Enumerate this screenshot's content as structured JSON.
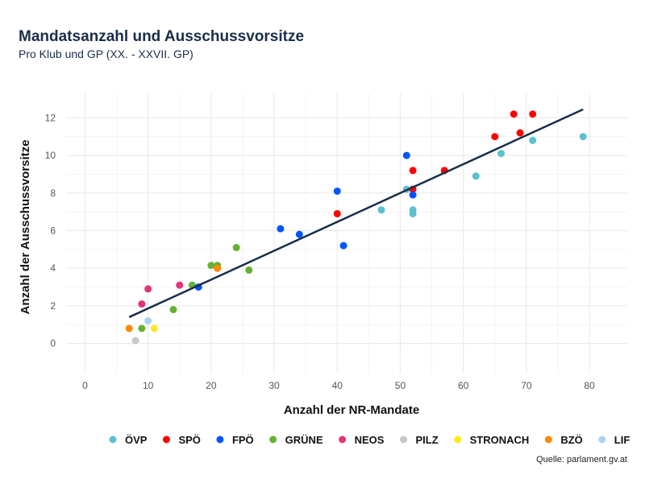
{
  "chart_data": {
    "type": "scatter",
    "title": "Mandatsanzahl und Ausschussvorsitze",
    "subtitle": "Pro Klub und GP (XX. - XXVII. GP)",
    "xlabel": "Anzahl der NR-Mandate",
    "ylabel": "Anzahl der Ausschussvorsitze",
    "xlim": [
      -3,
      86
    ],
    "ylim": [
      -1.6,
      13.3
    ],
    "xticks": [
      0,
      10,
      20,
      30,
      40,
      50,
      60,
      70,
      80
    ],
    "yticks": [
      0,
      2,
      4,
      6,
      8,
      10,
      12
    ],
    "grid": true,
    "legend": "bottom",
    "source": "Quelle: parlament.gv.at",
    "trendline": {
      "x": [
        7,
        79
      ],
      "y": [
        1.4,
        12.45
      ],
      "color": "#1a2e4a"
    },
    "series": [
      {
        "name": "ÖVP",
        "color": "#5bc0d0",
        "points": [
          [
            47,
            7.1
          ],
          [
            51,
            8.2
          ],
          [
            52,
            7.1
          ],
          [
            52,
            6.9
          ],
          [
            62,
            8.9
          ],
          [
            66,
            10.1
          ],
          [
            71,
            10.8
          ],
          [
            79,
            11.0
          ]
        ]
      },
      {
        "name": "SPÖ",
        "color": "#ff0000",
        "points": [
          [
            40,
            6.9
          ],
          [
            52,
            8.2
          ],
          [
            52,
            9.2
          ],
          [
            57,
            9.2
          ],
          [
            65,
            11.0
          ],
          [
            69,
            11.2
          ],
          [
            68,
            12.2
          ],
          [
            71,
            12.2
          ]
        ]
      },
      {
        "name": "FPÖ",
        "color": "#0055ff",
        "points": [
          [
            18,
            3.0
          ],
          [
            21,
            4.0
          ],
          [
            31,
            6.1
          ],
          [
            34,
            5.8
          ],
          [
            40,
            8.1
          ],
          [
            41,
            5.2
          ],
          [
            51,
            10.0
          ],
          [
            52,
            7.9
          ]
        ]
      },
      {
        "name": "GRÜNE",
        "color": "#66b032",
        "points": [
          [
            9,
            0.8
          ],
          [
            14,
            1.8
          ],
          [
            17,
            3.1
          ],
          [
            20,
            4.15
          ],
          [
            21,
            4.15
          ],
          [
            24,
            5.1
          ],
          [
            26,
            3.9
          ]
        ]
      },
      {
        "name": "NEOS",
        "color": "#e6327a",
        "points": [
          [
            9,
            2.1
          ],
          [
            10,
            2.9
          ],
          [
            15,
            3.1
          ]
        ]
      },
      {
        "name": "PILZ",
        "color": "#c8c8c8",
        "points": [
          [
            8,
            0.15
          ]
        ]
      },
      {
        "name": "STRONACH",
        "color": "#ffe81a",
        "points": [
          [
            11,
            0.8
          ]
        ]
      },
      {
        "name": "BZÖ",
        "color": "#ff8800",
        "points": [
          [
            7,
            0.8
          ],
          [
            21,
            4.0
          ]
        ]
      },
      {
        "name": "LIF",
        "color": "#a8d4f2",
        "points": [
          [
            10,
            1.2
          ]
        ]
      }
    ]
  }
}
